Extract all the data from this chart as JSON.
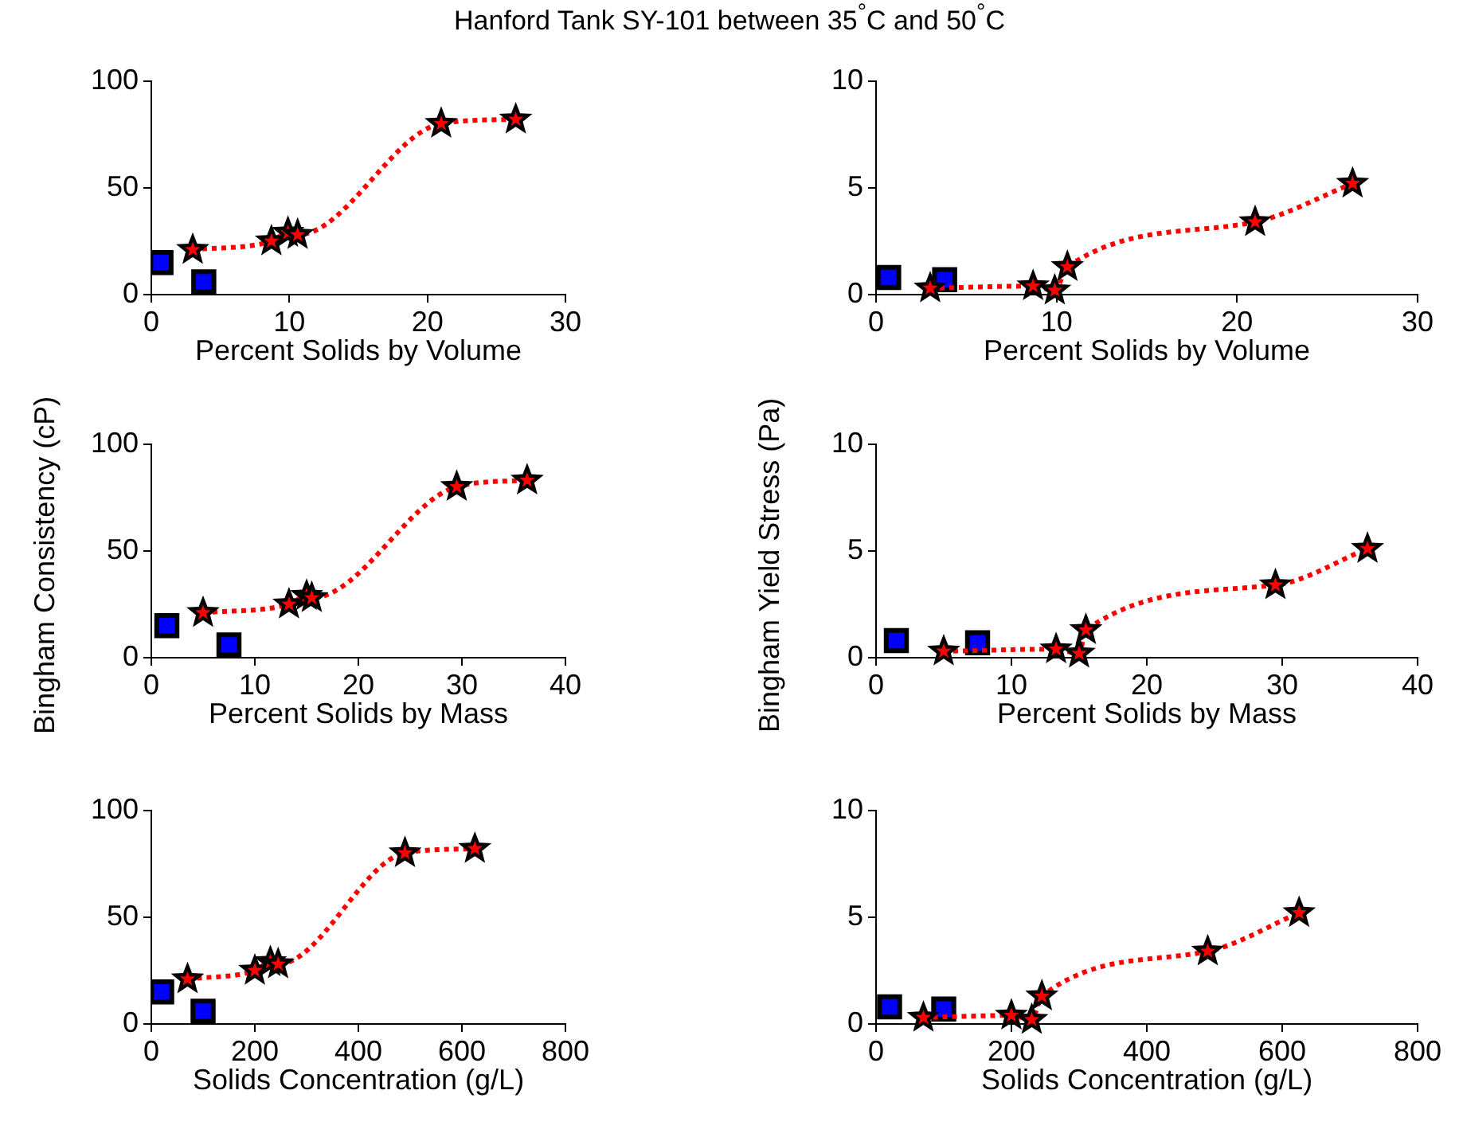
{
  "chart_data": [
    {
      "type": "scatter",
      "title": "Hanford Tank SY-101 between 35$^{°}$C and 50$^{°}$C",
      "xlabel": "Percent Solids by Volume",
      "xlim": [
        0,
        30
      ],
      "xticks": [
        0,
        10,
        20,
        30
      ],
      "ylim": [
        0,
        100
      ],
      "yticks": [
        0,
        50,
        100
      ],
      "grid": false,
      "legend": false,
      "series": [
        {
          "type": "line",
          "color": "#ff0000",
          "colors": [
            "#000000",
            "#000000",
            "#000000",
            "#000000",
            "#000000",
            "#000000"
          ],
          "marker": "star",
          "line_style": "dotted",
          "x": [
            3,
            8.7,
            9.9,
            10.6,
            21,
            26.4
          ],
          "values": [
            21,
            25,
            29,
            28,
            80,
            82
          ]
        },
        {
          "type": "scatter",
          "color": "#0000ff",
          "marker": "square",
          "x": [
            0.7,
            3.8
          ],
          "values": [
            15,
            6
          ]
        }
      ]
    },
    {
      "type": "scatter",
      "xlabel": "Percent Solids by Volume",
      "xlim": [
        0,
        30
      ],
      "xticks": [
        0,
        10,
        20,
        30
      ],
      "ylim": [
        0,
        10
      ],
      "yticks": [
        0,
        5,
        10
      ],
      "grid": false,
      "legend": false,
      "series": [
        {
          "type": "line",
          "color": "#ff0000",
          "colors": [
            "#000000",
            "#000000",
            "#000000",
            "#000000",
            "#000000",
            "#000000"
          ],
          "marker": "star",
          "line_style": "dotted",
          "x": [
            3,
            8.7,
            9.9,
            10.6,
            21,
            26.4
          ],
          "values": [
            0.3,
            0.4,
            0.2,
            1.3,
            3.4,
            5.2
          ]
        },
        {
          "type": "scatter",
          "color": "#0000ff",
          "marker": "square",
          "x": [
            0.7,
            3.8
          ],
          "values": [
            0.8,
            0.7
          ]
        }
      ]
    },
    {
      "type": "scatter",
      "xlabel": "Percent Solids by Mass",
      "ylabel": "Bingham Consistency (cP)",
      "xlim": [
        0,
        40
      ],
      "xticks": [
        0,
        10,
        20,
        30,
        40
      ],
      "ylim": [
        0,
        100
      ],
      "yticks": [
        0,
        50,
        100
      ],
      "grid": false,
      "legend": false,
      "series": [
        {
          "type": "line",
          "color": "#ff0000",
          "colors": [
            "#000000",
            "#000000",
            "#000000",
            "#000000",
            "#000000",
            "#000000"
          ],
          "marker": "star",
          "line_style": "dotted",
          "x": [
            5,
            13.3,
            15,
            15.5,
            29.5,
            36.3
          ],
          "values": [
            21,
            25,
            29,
            28,
            80,
            83
          ]
        },
        {
          "type": "scatter",
          "color": "#0000ff",
          "marker": "square",
          "x": [
            1.5,
            7.5
          ],
          "values": [
            15,
            6
          ]
        }
      ]
    },
    {
      "type": "scatter",
      "xlabel": "Percent Solids by Mass",
      "ylabel": "Bingham Yield Stress (Pa)",
      "xlim": [
        0,
        40
      ],
      "xticks": [
        0,
        10,
        20,
        30,
        40
      ],
      "ylim": [
        0,
        10
      ],
      "yticks": [
        0,
        5,
        10
      ],
      "grid": false,
      "legend": false,
      "series": [
        {
          "type": "line",
          "color": "#ff0000",
          "colors": [
            "#000000",
            "#000000",
            "#000000",
            "#000000",
            "#000000",
            "#000000"
          ],
          "marker": "star",
          "line_style": "dotted",
          "x": [
            5,
            13.3,
            15,
            15.5,
            29.5,
            36.3
          ],
          "values": [
            0.3,
            0.4,
            0.2,
            1.3,
            3.4,
            5.1
          ]
        },
        {
          "type": "scatter",
          "color": "#0000ff",
          "marker": "square",
          "x": [
            1.5,
            7.5
          ],
          "values": [
            0.8,
            0.7
          ]
        }
      ]
    },
    {
      "type": "scatter",
      "xlabel": "Solids Concentration (g/L)",
      "xlim": [
        0,
        800
      ],
      "xticks": [
        0,
        200,
        400,
        600,
        800
      ],
      "ylim": [
        0,
        100
      ],
      "yticks": [
        0,
        50,
        100
      ],
      "grid": false,
      "legend": false,
      "series": [
        {
          "type": "line",
          "color": "#ff0000",
          "colors": [
            "#000000",
            "#000000",
            "#000000",
            "#000000",
            "#000000",
            "#000000"
          ],
          "marker": "star",
          "line_style": "dotted",
          "x": [
            70,
            200,
            230,
            245,
            490,
            625
          ],
          "values": [
            21,
            25,
            29,
            28,
            80,
            82
          ]
        },
        {
          "type": "scatter",
          "color": "#0000ff",
          "marker": "square",
          "x": [
            20,
            100
          ],
          "values": [
            15,
            6
          ]
        }
      ]
    },
    {
      "type": "scatter",
      "xlabel": "Solids Concentration (g/L)",
      "xlim": [
        0,
        800
      ],
      "xticks": [
        0,
        200,
        400,
        600,
        800
      ],
      "ylim": [
        0,
        10
      ],
      "yticks": [
        0,
        5,
        10
      ],
      "grid": false,
      "legend": false,
      "series": [
        {
          "type": "line",
          "color": "#ff0000",
          "colors": [
            "#000000",
            "#000000",
            "#000000",
            "#000000",
            "#000000",
            "#000000"
          ],
          "marker": "star",
          "line_style": "dotted",
          "x": [
            70,
            200,
            230,
            245,
            490,
            625
          ],
          "values": [
            0.3,
            0.4,
            0.2,
            1.3,
            3.4,
            5.2
          ]
        },
        {
          "type": "scatter",
          "color": "#0000ff",
          "marker": "square",
          "x": [
            20,
            100
          ],
          "values": [
            0.8,
            0.7
          ]
        }
      ]
    }
  ]
}
